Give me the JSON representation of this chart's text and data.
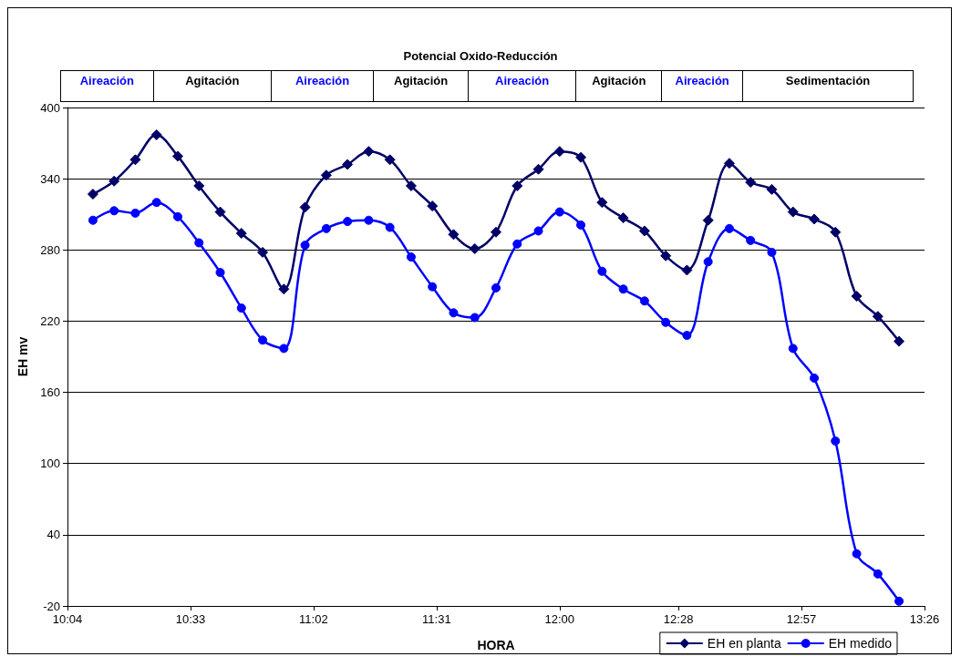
{
  "chart_data": {
    "type": "line",
    "title": "Potencial Oxido-Reducción",
    "xlabel": "HORA",
    "ylabel": "EH mv",
    "annotations": [
      "Aireación",
      "Agitación",
      "Aireación",
      "Agitación",
      "Aireación",
      "Agitación",
      "Aireación",
      "Sedimentación"
    ],
    "x": [
      10.1667,
      10.25,
      10.3333,
      10.4167,
      10.5,
      10.5833,
      10.6667,
      10.75,
      10.8333,
      10.9167,
      11.0,
      11.0833,
      11.1667,
      11.25,
      11.3333,
      11.4167,
      11.5,
      11.5833,
      11.6667,
      11.75,
      11.8333,
      11.9167,
      12.0,
      12.0833,
      12.1667,
      12.25,
      12.3333,
      12.4167,
      12.5,
      12.5833,
      12.6667,
      12.75,
      12.8333,
      12.9167,
      13.0,
      13.0833,
      13.1667,
      13.25,
      13.3333
    ],
    "series": [
      {
        "name": "EH en planta",
        "color": "#000066",
        "marker": "diamond",
        "values": [
          327,
          338,
          356,
          377,
          359,
          334,
          312,
          294,
          278,
          247,
          316,
          343,
          352,
          363,
          356,
          334,
          317,
          293,
          281,
          295,
          334,
          348,
          363,
          358,
          320,
          307,
          296,
          275,
          263,
          305,
          353,
          337,
          331,
          312,
          306,
          295,
          241,
          224,
          203
        ]
      },
      {
        "name": "EH medido",
        "color": "#0000ff",
        "marker": "circle",
        "values": [
          305,
          313,
          311,
          320,
          308,
          286,
          261,
          231,
          204,
          197,
          284,
          298,
          304,
          305,
          299,
          274,
          249,
          227,
          223,
          248,
          285,
          296,
          312,
          301,
          262,
          247,
          237,
          219,
          208,
          270,
          298,
          288,
          278,
          197,
          172,
          119,
          24,
          7,
          -16
        ]
      }
    ],
    "xlim": [
      10.0667,
      13.4333
    ],
    "xticks": [
      {
        "value": 10.0667,
        "label": "10:04"
      },
      {
        "value": 10.55,
        "label": "10:33"
      },
      {
        "value": 11.0333,
        "label": "11:02"
      },
      {
        "value": 11.5167,
        "label": "11:31"
      },
      {
        "value": 12.0,
        "label": "12:00"
      },
      {
        "value": 12.4667,
        "label": "12:28"
      },
      {
        "value": 12.95,
        "label": "12:57"
      },
      {
        "value": 13.4333,
        "label": "13:26"
      }
    ],
    "ylim": [
      -20,
      400
    ],
    "yticks": [
      -20,
      40,
      100,
      160,
      220,
      280,
      340,
      400
    ],
    "grid": "y",
    "legend": "bottom right",
    "line_style": "solid"
  }
}
